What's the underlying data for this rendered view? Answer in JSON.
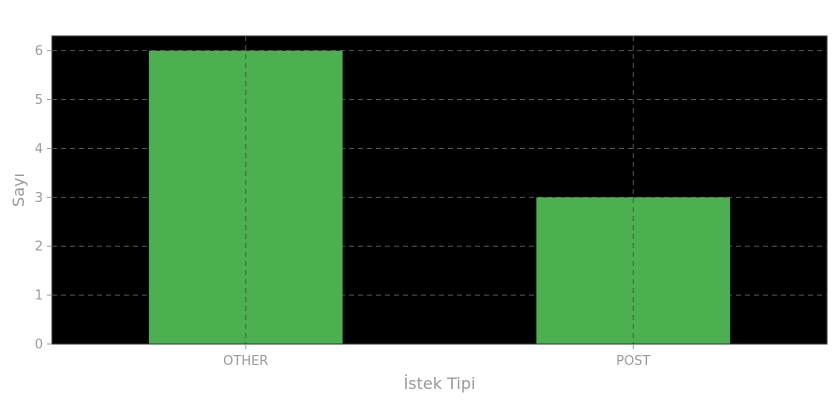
{
  "chart_data": {
    "type": "bar",
    "categories": [
      "OTHER",
      "POST"
    ],
    "values": [
      6,
      3
    ],
    "xlabel": "İstek Tipi",
    "ylabel": "Sayı",
    "ylim": [
      0,
      6.3
    ],
    "yticks": [
      0,
      1,
      2,
      3,
      4,
      5,
      6
    ],
    "grid": true,
    "colors": {
      "bar": "#4caf50",
      "plot_background": "#000000",
      "grid": "#555555",
      "text": "#9a9a9a"
    }
  }
}
